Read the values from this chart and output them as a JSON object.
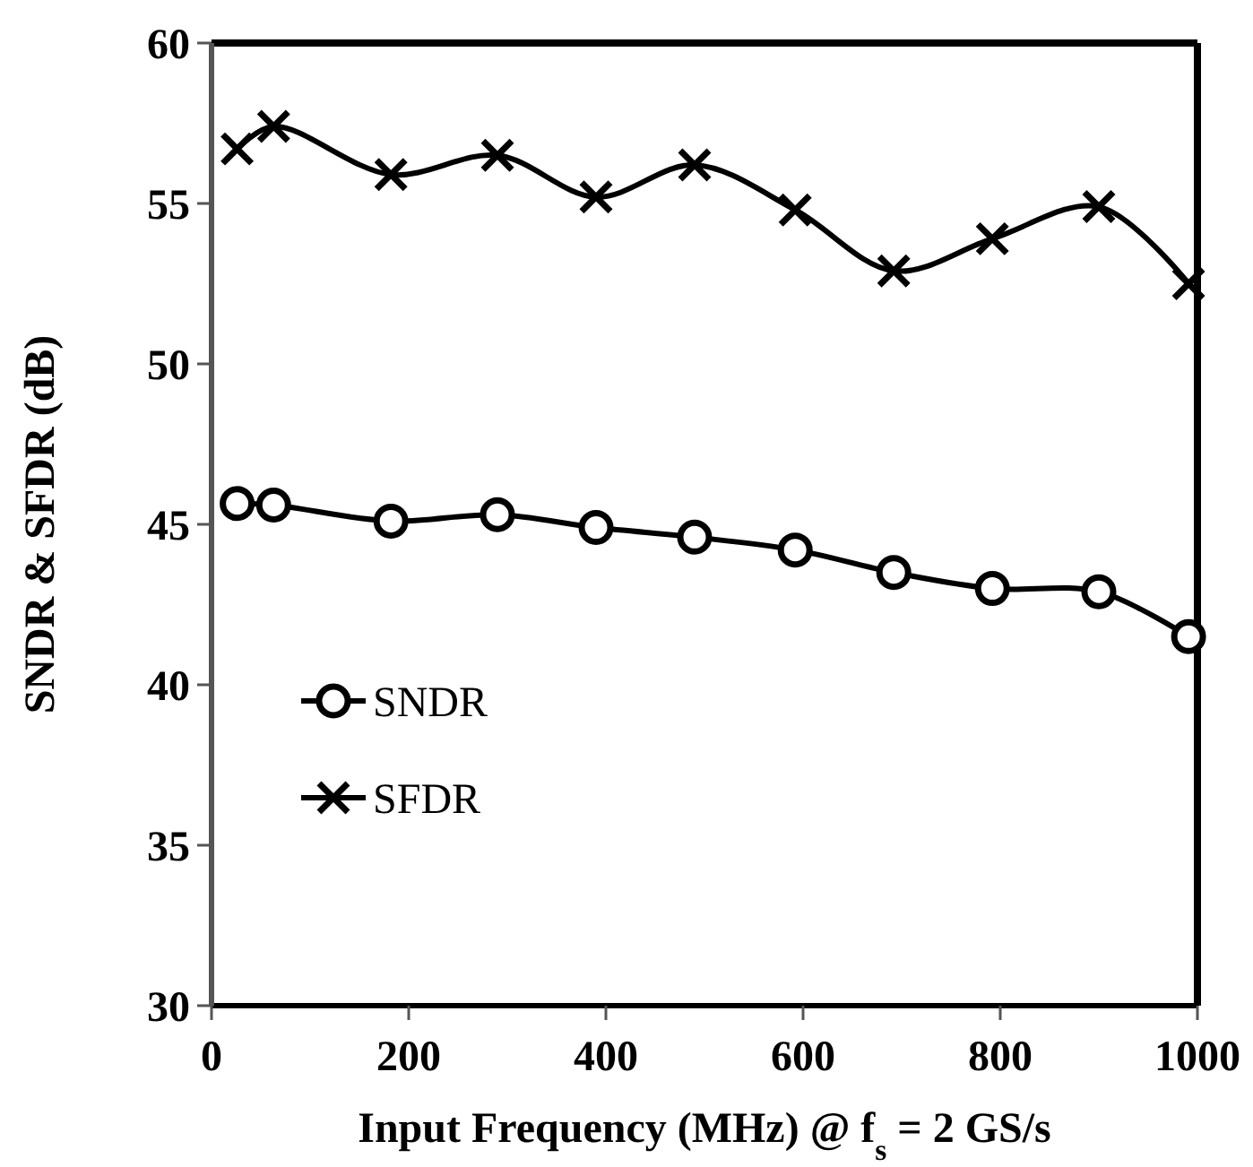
{
  "chart_data": {
    "type": "line",
    "xlabel": "Input Frequency (MHz) @ f$_{s}$ = 2 GS/s",
    "ylabel": "SNDR & SFDR (dB)",
    "xlim": [
      0,
      1000
    ],
    "xticks": [
      0,
      200,
      400,
      600,
      800,
      1000
    ],
    "ylim": [
      30,
      60
    ],
    "yticks": [
      30,
      35,
      40,
      45,
      50,
      55,
      60
    ],
    "grid": false,
    "legend": "bottom left",
    "line_style": "solid",
    "series": [
      {
        "name": "SNDR",
        "color": "#000000",
        "marker": "circle",
        "x": [
          26,
          63,
          182,
          290,
          390,
          490,
          592,
          692,
          792,
          900,
          991
        ],
        "values": [
          45.65,
          45.6,
          45.1,
          45.3,
          44.9,
          44.6,
          44.2,
          43.5,
          43.0,
          42.9,
          41.5
        ]
      },
      {
        "name": "SFDR",
        "color": "#000000",
        "marker": "cross",
        "x": [
          26,
          63,
          182,
          290,
          390,
          490,
          592,
          692,
          792,
          900,
          991
        ],
        "values": [
          56.7,
          57.4,
          55.9,
          56.5,
          55.2,
          56.2,
          54.8,
          52.9,
          53.9,
          54.9,
          52.5
        ]
      }
    ]
  }
}
